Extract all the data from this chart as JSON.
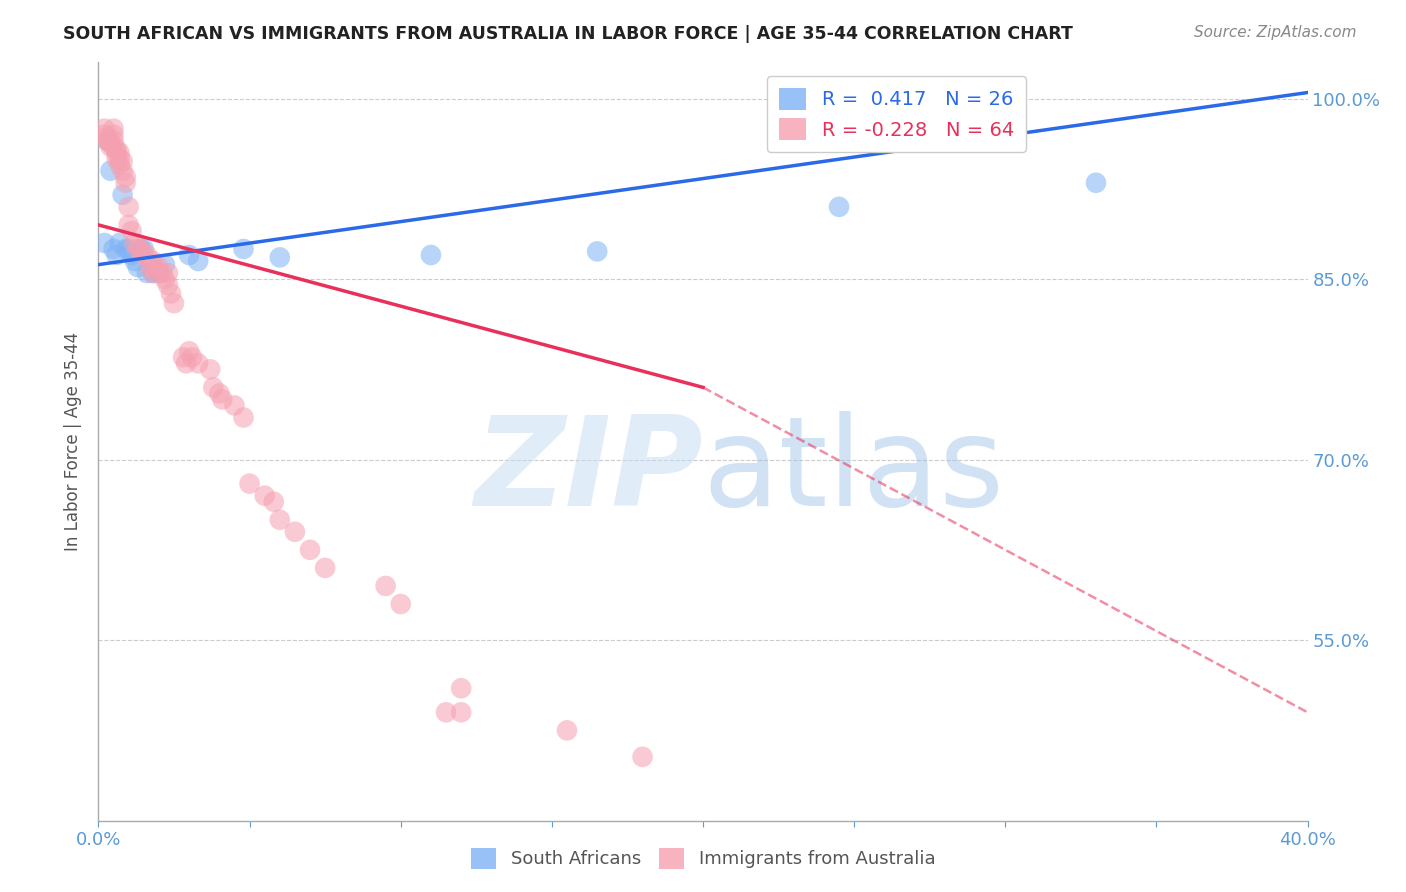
{
  "title": "SOUTH AFRICAN VS IMMIGRANTS FROM AUSTRALIA IN LABOR FORCE | AGE 35-44 CORRELATION CHART",
  "source": "Source: ZipAtlas.com",
  "ylabel": "In Labor Force | Age 35-44",
  "xlim": [
    0.0,
    0.4
  ],
  "ylim": [
    0.4,
    1.03
  ],
  "xticks": [
    0.0,
    0.05,
    0.1,
    0.15,
    0.2,
    0.25,
    0.3,
    0.35,
    0.4
  ],
  "yticks": [
    0.55,
    0.7,
    0.85,
    1.0
  ],
  "yticklabels": [
    "55.0%",
    "70.0%",
    "85.0%",
    "100.0%"
  ],
  "ytick_color": "#5b9bd5",
  "xtick_color": "#5b9bd5",
  "blue_color": "#7fb3f5",
  "pink_color": "#f5a0b0",
  "blue_scatter": [
    [
      0.002,
      0.88
    ],
    [
      0.003,
      0.965
    ],
    [
      0.004,
      0.94
    ],
    [
      0.005,
      0.875
    ],
    [
      0.006,
      0.87
    ],
    [
      0.007,
      0.88
    ],
    [
      0.008,
      0.92
    ],
    [
      0.009,
      0.875
    ],
    [
      0.01,
      0.875
    ],
    [
      0.011,
      0.87
    ],
    [
      0.012,
      0.865
    ],
    [
      0.013,
      0.86
    ],
    [
      0.014,
      0.875
    ],
    [
      0.015,
      0.875
    ],
    [
      0.016,
      0.855
    ],
    [
      0.018,
      0.855
    ],
    [
      0.02,
      0.855
    ],
    [
      0.022,
      0.862
    ],
    [
      0.03,
      0.87
    ],
    [
      0.033,
      0.865
    ],
    [
      0.048,
      0.875
    ],
    [
      0.06,
      0.868
    ],
    [
      0.11,
      0.87
    ],
    [
      0.165,
      0.873
    ],
    [
      0.245,
      0.91
    ],
    [
      0.33,
      0.93
    ]
  ],
  "pink_scatter": [
    [
      0.002,
      0.975
    ],
    [
      0.002,
      0.97
    ],
    [
      0.003,
      0.968
    ],
    [
      0.003,
      0.965
    ],
    [
      0.004,
      0.963
    ],
    [
      0.004,
      0.96
    ],
    [
      0.005,
      0.975
    ],
    [
      0.005,
      0.97
    ],
    [
      0.005,
      0.965
    ],
    [
      0.005,
      0.96
    ],
    [
      0.006,
      0.958
    ],
    [
      0.006,
      0.955
    ],
    [
      0.006,
      0.95
    ],
    [
      0.007,
      0.955
    ],
    [
      0.007,
      0.95
    ],
    [
      0.007,
      0.945
    ],
    [
      0.008,
      0.948
    ],
    [
      0.008,
      0.94
    ],
    [
      0.009,
      0.935
    ],
    [
      0.009,
      0.93
    ],
    [
      0.01,
      0.91
    ],
    [
      0.01,
      0.895
    ],
    [
      0.011,
      0.89
    ],
    [
      0.012,
      0.88
    ],
    [
      0.013,
      0.875
    ],
    [
      0.014,
      0.875
    ],
    [
      0.015,
      0.87
    ],
    [
      0.016,
      0.87
    ],
    [
      0.017,
      0.86
    ],
    [
      0.018,
      0.865
    ],
    [
      0.018,
      0.855
    ],
    [
      0.019,
      0.858
    ],
    [
      0.02,
      0.86
    ],
    [
      0.021,
      0.855
    ],
    [
      0.022,
      0.85
    ],
    [
      0.023,
      0.855
    ],
    [
      0.023,
      0.845
    ],
    [
      0.024,
      0.838
    ],
    [
      0.025,
      0.83
    ],
    [
      0.028,
      0.785
    ],
    [
      0.029,
      0.78
    ],
    [
      0.03,
      0.79
    ],
    [
      0.031,
      0.785
    ],
    [
      0.033,
      0.78
    ],
    [
      0.037,
      0.775
    ],
    [
      0.038,
      0.76
    ],
    [
      0.04,
      0.755
    ],
    [
      0.041,
      0.75
    ],
    [
      0.045,
      0.745
    ],
    [
      0.048,
      0.735
    ],
    [
      0.05,
      0.68
    ],
    [
      0.055,
      0.67
    ],
    [
      0.058,
      0.665
    ],
    [
      0.06,
      0.65
    ],
    [
      0.065,
      0.64
    ],
    [
      0.07,
      0.625
    ],
    [
      0.075,
      0.61
    ],
    [
      0.095,
      0.595
    ],
    [
      0.1,
      0.58
    ],
    [
      0.115,
      0.49
    ],
    [
      0.12,
      0.51
    ],
    [
      0.12,
      0.49
    ],
    [
      0.155,
      0.475
    ],
    [
      0.18,
      0.453
    ]
  ],
  "blue_line": [
    [
      0.0,
      0.862
    ],
    [
      0.4,
      1.005
    ]
  ],
  "pink_line_solid": [
    [
      0.0,
      0.895
    ],
    [
      0.2,
      0.76
    ]
  ],
  "pink_line_dashed": [
    [
      0.2,
      0.76
    ],
    [
      0.4,
      0.49
    ]
  ],
  "watermark_zip": "ZIP",
  "watermark_atlas": "atlas",
  "background_color": "#ffffff",
  "grid_color": "#cccccc"
}
